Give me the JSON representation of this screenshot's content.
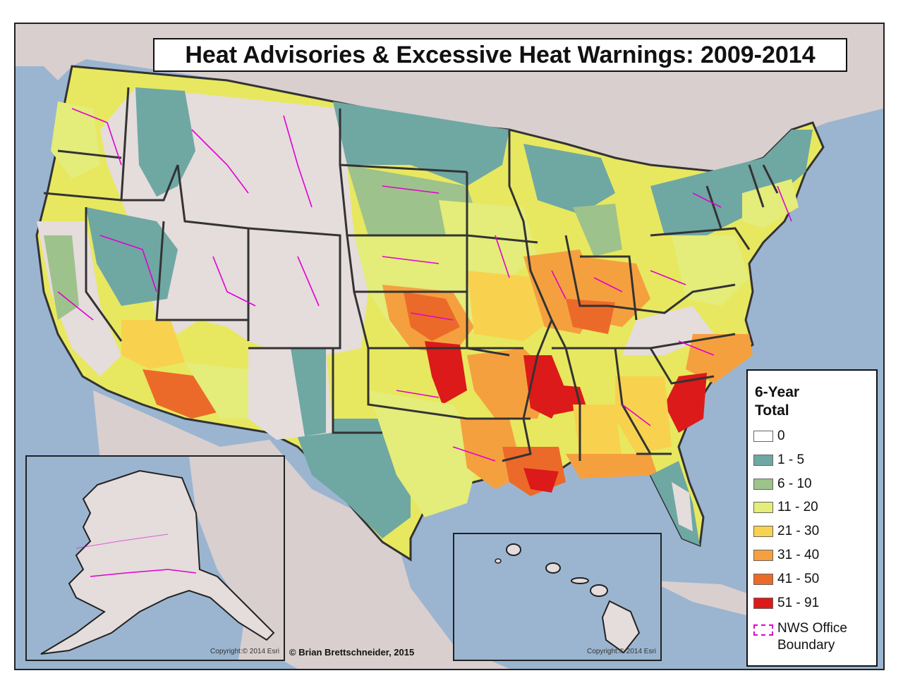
{
  "title": "Heat Advisories & Excessive Heat Warnings: 2009-2014",
  "credit": "© Brian Brettschneider, 2015",
  "copyrights": {
    "alaska": "Copyright:© 2014 Esri",
    "hawaii": "Copyright:© 2014 Esri"
  },
  "legend": {
    "title_line1": "6-Year",
    "title_line2": "Total",
    "classes": [
      {
        "label": "0",
        "color": "#ffffff"
      },
      {
        "label": "1 - 5",
        "color": "#6fa7a3"
      },
      {
        "label": "6 - 10",
        "color": "#9ec28b"
      },
      {
        "label": "11 - 20",
        "color": "#e4ec7a"
      },
      {
        "label": "21 - 30",
        "color": "#f8d24e"
      },
      {
        "label": "31 - 40",
        "color": "#f5a03f"
      },
      {
        "label": "41 - 50",
        "color": "#ec6a29"
      },
      {
        "label": "51 - 91",
        "color": "#dc1a1a"
      }
    ],
    "boundary_label_line1": "NWS Office",
    "boundary_label_line2": "Boundary",
    "boundary_color": "#e000d0"
  },
  "colors": {
    "ocean": "#9bb5d0",
    "land_background": "#d9cfcf",
    "state_line": "#333333"
  }
}
